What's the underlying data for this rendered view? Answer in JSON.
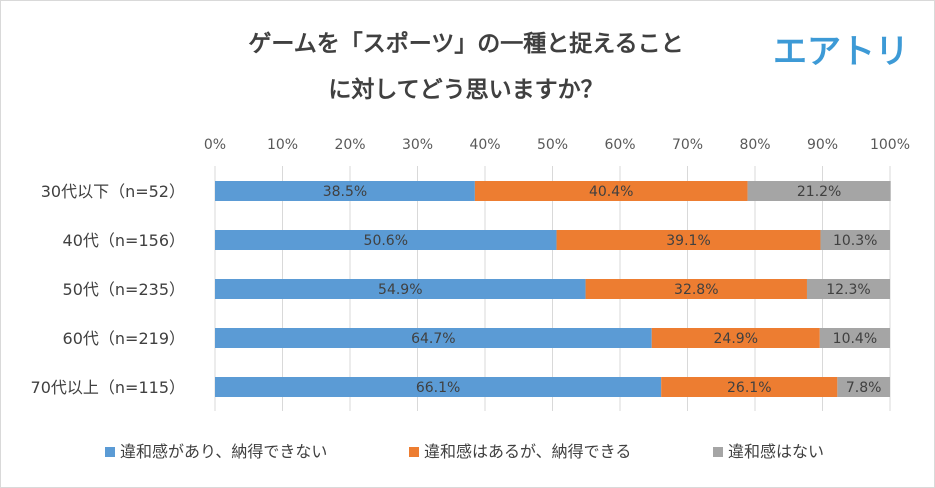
{
  "logo": {
    "text": "エアトリ",
    "color": "#3d9ad6"
  },
  "chart_data": {
    "type": "bar",
    "orientation": "horizontal",
    "stacked": "percent",
    "title_lines": [
      "ゲームを「スポーツ」の一種と捉えること",
      "に対してどう思いますか？"
    ],
    "categories": [
      "30代以下（n=52）",
      "40代（n=156）",
      "50代（n=235）",
      "60代（n=219）",
      "70代以上（n=115）"
    ],
    "xlim": [
      0,
      100
    ],
    "x_ticks": [
      "0%",
      "10%",
      "20%",
      "30%",
      "40%",
      "50%",
      "60%",
      "70%",
      "80%",
      "90%",
      "100%"
    ],
    "grid": true,
    "legend_position": "bottom",
    "series": [
      {
        "name": "違和感があり、納得できない",
        "color": "#5b9bd5",
        "values": [
          38.5,
          50.6,
          54.9,
          64.7,
          66.1
        ],
        "labels": [
          "38.5%",
          "50.6%",
          "54.9%",
          "64.7%",
          "66.1%"
        ]
      },
      {
        "name": "違和感はあるが、納得できる",
        "color": "#ed7d31",
        "values": [
          40.4,
          39.1,
          32.8,
          24.9,
          26.1
        ],
        "labels": [
          "40.4%",
          "39.1%",
          "32.8%",
          "24.9%",
          "26.1%"
        ]
      },
      {
        "name": "違和感はない",
        "color": "#a5a5a5",
        "values": [
          21.2,
          10.3,
          12.3,
          10.4,
          7.8
        ],
        "labels": [
          "21.2%",
          "10.3%",
          "12.3%",
          "10.4%",
          "7.8%"
        ]
      }
    ]
  }
}
